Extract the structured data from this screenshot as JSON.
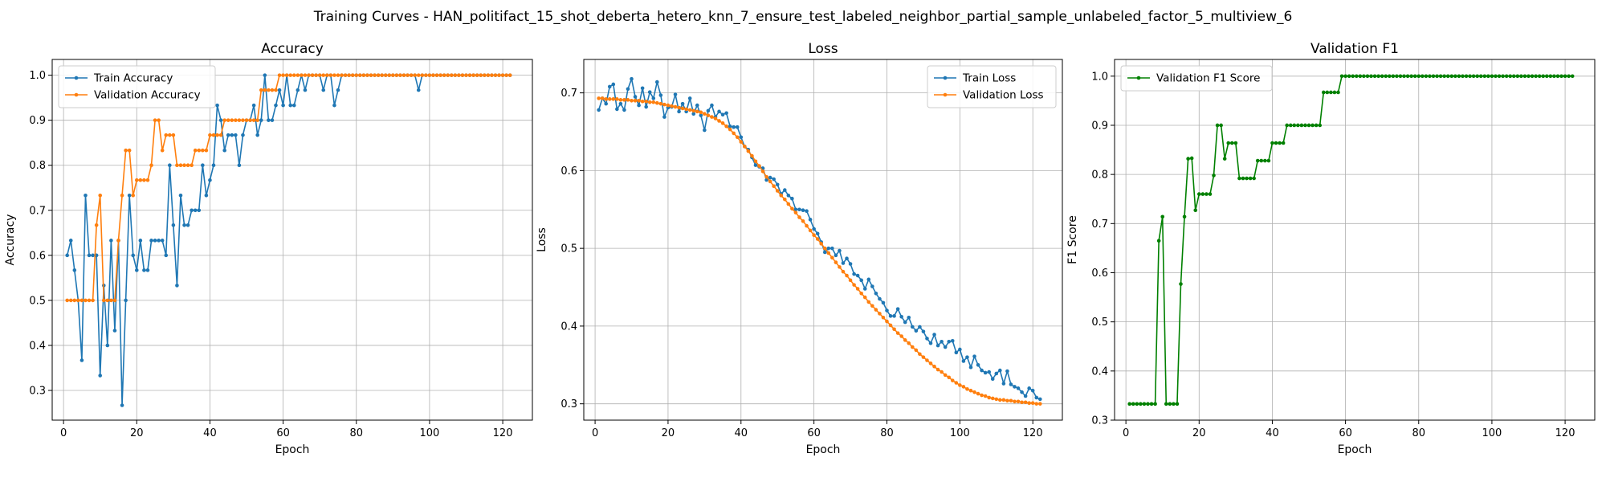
{
  "suptitle": "Training Curves - HAN_politifact_15_shot_deberta_hetero_knn_7_ensure_test_labeled_neighbor_partial_sample_unlabeled_factor_5_multiview_6",
  "chart_data": [
    {
      "type": "line",
      "title": "Accuracy",
      "xlabel": "Epoch",
      "ylabel": "Accuracy",
      "xlim": [
        -3.1,
        128.1
      ],
      "ylim": [
        0.234,
        1.035
      ],
      "xticks": [
        0,
        20,
        40,
        60,
        80,
        100,
        120
      ],
      "yticks": [
        0.3,
        0.4,
        0.5,
        0.6,
        0.7,
        0.8,
        0.9,
        1.0
      ],
      "grid": true,
      "legend": "top-left",
      "x": [
        1,
        2,
        3,
        4,
        5,
        6,
        7,
        8,
        9,
        10,
        11,
        12,
        13,
        14,
        15,
        16,
        17,
        18,
        19,
        20,
        21,
        22,
        23,
        24,
        25,
        26,
        27,
        28,
        29,
        30,
        31,
        32,
        33,
        34,
        35,
        36,
        37,
        38,
        39,
        40,
        41,
        42,
        43,
        44,
        45,
        46,
        47,
        48,
        49,
        50,
        51,
        52,
        53,
        54,
        55,
        56,
        57,
        58,
        59,
        60,
        61,
        62,
        63,
        64,
        65,
        66,
        67,
        68,
        69,
        70,
        71,
        72,
        73,
        74,
        75,
        76,
        77,
        78,
        79,
        80,
        81,
        82,
        83,
        84,
        85,
        86,
        87,
        88,
        89,
        90,
        91,
        92,
        93,
        94,
        95,
        96,
        97,
        98,
        99,
        100,
        101,
        102,
        103,
        104,
        105,
        106,
        107,
        108,
        109,
        110,
        111,
        112,
        113,
        114,
        115,
        116,
        117,
        118,
        119,
        120,
        121,
        122
      ],
      "series": [
        {
          "name": "Train Accuracy",
          "color": "#1f77b4",
          "values": [
            0.6,
            0.633,
            0.567,
            0.5,
            0.367,
            0.733,
            0.6,
            0.6,
            0.6,
            0.333,
            0.533,
            0.4,
            0.633,
            0.433,
            0.633,
            0.267,
            0.5,
            0.733,
            0.6,
            0.567,
            0.633,
            0.567,
            0.567,
            0.633,
            0.633,
            0.633,
            0.633,
            0.6,
            0.8,
            0.667,
            0.533,
            0.733,
            0.667,
            0.667,
            0.7,
            0.7,
            0.7,
            0.8,
            0.733,
            0.767,
            0.8,
            0.933,
            0.9,
            0.833,
            0.867,
            0.867,
            0.867,
            0.8,
            0.867,
            0.9,
            0.9,
            0.933,
            0.867,
            0.9,
            1.0,
            0.9,
            0.9,
            0.933,
            0.967,
            0.933,
            1.0,
            0.933,
            0.933,
            0.967,
            1.0,
            0.967,
            1.0,
            1.0,
            1.0,
            1.0,
            0.967,
            1.0,
            1.0,
            0.933,
            0.967,
            1.0,
            1.0,
            1.0,
            1.0,
            1.0,
            1.0,
            1.0,
            1.0,
            1.0,
            1.0,
            1.0,
            1.0,
            1.0,
            1.0,
            1.0,
            1.0,
            1.0,
            1.0,
            1.0,
            1.0,
            1.0,
            0.967,
            1.0,
            1.0,
            1.0,
            1.0,
            1.0,
            1.0,
            1.0,
            1.0,
            1.0,
            1.0,
            1.0,
            1.0,
            1.0,
            1.0,
            1.0,
            1.0,
            1.0,
            1.0,
            1.0,
            1.0,
            1.0,
            1.0,
            1.0,
            1.0,
            1.0
          ]
        },
        {
          "name": "Validation Accuracy",
          "color": "#ff7f0e",
          "values": [
            0.5,
            0.5,
            0.5,
            0.5,
            0.5,
            0.5,
            0.5,
            0.5,
            0.667,
            0.733,
            0.5,
            0.5,
            0.5,
            0.5,
            0.633,
            0.733,
            0.833,
            0.833,
            0.733,
            0.767,
            0.767,
            0.767,
            0.767,
            0.8,
            0.9,
            0.9,
            0.833,
            0.867,
            0.867,
            0.867,
            0.8,
            0.8,
            0.8,
            0.8,
            0.8,
            0.833,
            0.833,
            0.833,
            0.833,
            0.867,
            0.867,
            0.867,
            0.867,
            0.9,
            0.9,
            0.9,
            0.9,
            0.9,
            0.9,
            0.9,
            0.9,
            0.9,
            0.9,
            0.967,
            0.967,
            0.967,
            0.967,
            0.967,
            1.0,
            1.0,
            1.0,
            1.0,
            1.0,
            1.0,
            1.0,
            1.0,
            1.0,
            1.0,
            1.0,
            1.0,
            1.0,
            1.0,
            1.0,
            1.0,
            1.0,
            1.0,
            1.0,
            1.0,
            1.0,
            1.0,
            1.0,
            1.0,
            1.0,
            1.0,
            1.0,
            1.0,
            1.0,
            1.0,
            1.0,
            1.0,
            1.0,
            1.0,
            1.0,
            1.0,
            1.0,
            1.0,
            1.0,
            1.0,
            1.0,
            1.0,
            1.0,
            1.0,
            1.0,
            1.0,
            1.0,
            1.0,
            1.0,
            1.0,
            1.0,
            1.0,
            1.0,
            1.0,
            1.0,
            1.0,
            1.0,
            1.0,
            1.0,
            1.0,
            1.0,
            1.0,
            1.0,
            1.0
          ]
        }
      ]
    },
    {
      "type": "line",
      "title": "Loss",
      "xlabel": "Epoch",
      "ylabel": "Loss",
      "xlim": [
        -3.1,
        128.1
      ],
      "ylim": [
        0.279,
        0.743
      ],
      "xticks": [
        0,
        20,
        40,
        60,
        80,
        100,
        120
      ],
      "yticks": [
        0.3,
        0.4,
        0.5,
        0.6,
        0.7
      ],
      "grid": true,
      "legend": "top-right",
      "x": [
        1,
        2,
        3,
        4,
        5,
        6,
        7,
        8,
        9,
        10,
        11,
        12,
        13,
        14,
        15,
        16,
        17,
        18,
        19,
        20,
        21,
        22,
        23,
        24,
        25,
        26,
        27,
        28,
        29,
        30,
        31,
        32,
        33,
        34,
        35,
        36,
        37,
        38,
        39,
        40,
        41,
        42,
        43,
        44,
        45,
        46,
        47,
        48,
        49,
        50,
        51,
        52,
        53,
        54,
        55,
        56,
        57,
        58,
        59,
        60,
        61,
        62,
        63,
        64,
        65,
        66,
        67,
        68,
        69,
        70,
        71,
        72,
        73,
        74,
        75,
        76,
        77,
        78,
        79,
        80,
        81,
        82,
        83,
        84,
        85,
        86,
        87,
        88,
        89,
        90,
        91,
        92,
        93,
        94,
        95,
        96,
        97,
        98,
        99,
        100,
        101,
        102,
        103,
        104,
        105,
        106,
        107,
        108,
        109,
        110,
        111,
        112,
        113,
        114,
        115,
        116,
        117,
        118,
        119,
        120,
        121,
        122
      ],
      "series": [
        {
          "name": "Train Loss",
          "color": "#1f77b4",
          "values": [
            0.678,
            0.693,
            0.686,
            0.708,
            0.711,
            0.679,
            0.686,
            0.678,
            0.705,
            0.718,
            0.695,
            0.684,
            0.706,
            0.682,
            0.701,
            0.693,
            0.714,
            0.697,
            0.669,
            0.681,
            0.682,
            0.698,
            0.676,
            0.686,
            0.676,
            0.693,
            0.673,
            0.684,
            0.671,
            0.652,
            0.677,
            0.684,
            0.669,
            0.676,
            0.672,
            0.674,
            0.657,
            0.656,
            0.656,
            0.643,
            0.631,
            0.627,
            0.617,
            0.607,
            0.605,
            0.603,
            0.588,
            0.591,
            0.589,
            0.582,
            0.57,
            0.575,
            0.568,
            0.564,
            0.55,
            0.55,
            0.549,
            0.548,
            0.537,
            0.525,
            0.519,
            0.508,
            0.495,
            0.5,
            0.5,
            0.491,
            0.497,
            0.481,
            0.487,
            0.48,
            0.467,
            0.465,
            0.459,
            0.448,
            0.46,
            0.451,
            0.442,
            0.435,
            0.43,
            0.42,
            0.413,
            0.413,
            0.422,
            0.412,
            0.405,
            0.411,
            0.399,
            0.394,
            0.399,
            0.393,
            0.384,
            0.378,
            0.389,
            0.375,
            0.38,
            0.373,
            0.38,
            0.381,
            0.366,
            0.37,
            0.355,
            0.36,
            0.347,
            0.361,
            0.35,
            0.343,
            0.34,
            0.341,
            0.332,
            0.339,
            0.343,
            0.326,
            0.342,
            0.325,
            0.322,
            0.32,
            0.315,
            0.31,
            0.32,
            0.317,
            0.308,
            0.306
          ]
        },
        {
          "name": "Validation Loss",
          "color": "#ff7f0e",
          "values": [
            0.693,
            0.693,
            0.692,
            0.692,
            0.692,
            0.692,
            0.691,
            0.691,
            0.691,
            0.69,
            0.69,
            0.69,
            0.689,
            0.689,
            0.688,
            0.688,
            0.687,
            0.686,
            0.685,
            0.684,
            0.683,
            0.682,
            0.681,
            0.68,
            0.679,
            0.678,
            0.677,
            0.676,
            0.675,
            0.673,
            0.671,
            0.669,
            0.667,
            0.664,
            0.661,
            0.657,
            0.653,
            0.648,
            0.643,
            0.637,
            0.631,
            0.625,
            0.619,
            0.612,
            0.606,
            0.599,
            0.592,
            0.586,
            0.58,
            0.574,
            0.568,
            0.563,
            0.557,
            0.551,
            0.546,
            0.54,
            0.535,
            0.529,
            0.523,
            0.517,
            0.512,
            0.506,
            0.5,
            0.494,
            0.488,
            0.482,
            0.476,
            0.47,
            0.465,
            0.459,
            0.453,
            0.448,
            0.442,
            0.437,
            0.431,
            0.426,
            0.421,
            0.416,
            0.411,
            0.406,
            0.401,
            0.396,
            0.391,
            0.387,
            0.382,
            0.378,
            0.373,
            0.369,
            0.364,
            0.36,
            0.356,
            0.352,
            0.348,
            0.344,
            0.341,
            0.337,
            0.334,
            0.33,
            0.327,
            0.324,
            0.322,
            0.319,
            0.317,
            0.315,
            0.313,
            0.311,
            0.31,
            0.308,
            0.307,
            0.306,
            0.305,
            0.305,
            0.304,
            0.304,
            0.303,
            0.303,
            0.302,
            0.302,
            0.301,
            0.301,
            0.3,
            0.3
          ]
        }
      ]
    },
    {
      "type": "line",
      "title": "Validation F1",
      "xlabel": "Epoch",
      "ylabel": "F1 Score",
      "xlim": [
        -3.1,
        128.1
      ],
      "ylim": [
        0.3,
        1.034
      ],
      "xticks": [
        0,
        20,
        40,
        60,
        80,
        100,
        120
      ],
      "yticks": [
        0.3,
        0.4,
        0.5,
        0.6,
        0.7,
        0.8,
        0.9,
        1.0
      ],
      "grid": true,
      "legend": "top-left",
      "x": [
        1,
        2,
        3,
        4,
        5,
        6,
        7,
        8,
        9,
        10,
        11,
        12,
        13,
        14,
        15,
        16,
        17,
        18,
        19,
        20,
        21,
        22,
        23,
        24,
        25,
        26,
        27,
        28,
        29,
        30,
        31,
        32,
        33,
        34,
        35,
        36,
        37,
        38,
        39,
        40,
        41,
        42,
        43,
        44,
        45,
        46,
        47,
        48,
        49,
        50,
        51,
        52,
        53,
        54,
        55,
        56,
        57,
        58,
        59,
        60,
        61,
        62,
        63,
        64,
        65,
        66,
        67,
        68,
        69,
        70,
        71,
        72,
        73,
        74,
        75,
        76,
        77,
        78,
        79,
        80,
        81,
        82,
        83,
        84,
        85,
        86,
        87,
        88,
        89,
        90,
        91,
        92,
        93,
        94,
        95,
        96,
        97,
        98,
        99,
        100,
        101,
        102,
        103,
        104,
        105,
        106,
        107,
        108,
        109,
        110,
        111,
        112,
        113,
        114,
        115,
        116,
        117,
        118,
        119,
        120,
        121,
        122
      ],
      "series": [
        {
          "name": "Validation F1 Score",
          "color": "#008000",
          "values": [
            0.333,
            0.333,
            0.333,
            0.333,
            0.333,
            0.333,
            0.333,
            0.333,
            0.665,
            0.714,
            0.333,
            0.333,
            0.333,
            0.333,
            0.577,
            0.714,
            0.832,
            0.833,
            0.727,
            0.76,
            0.76,
            0.76,
            0.76,
            0.798,
            0.9,
            0.9,
            0.832,
            0.864,
            0.864,
            0.864,
            0.792,
            0.792,
            0.792,
            0.792,
            0.792,
            0.828,
            0.828,
            0.828,
            0.828,
            0.864,
            0.864,
            0.864,
            0.864,
            0.9,
            0.9,
            0.9,
            0.9,
            0.9,
            0.9,
            0.9,
            0.9,
            0.9,
            0.9,
            0.967,
            0.967,
            0.967,
            0.967,
            0.967,
            1.0,
            1.0,
            1.0,
            1.0,
            1.0,
            1.0,
            1.0,
            1.0,
            1.0,
            1.0,
            1.0,
            1.0,
            1.0,
            1.0,
            1.0,
            1.0,
            1.0,
            1.0,
            1.0,
            1.0,
            1.0,
            1.0,
            1.0,
            1.0,
            1.0,
            1.0,
            1.0,
            1.0,
            1.0,
            1.0,
            1.0,
            1.0,
            1.0,
            1.0,
            1.0,
            1.0,
            1.0,
            1.0,
            1.0,
            1.0,
            1.0,
            1.0,
            1.0,
            1.0,
            1.0,
            1.0,
            1.0,
            1.0,
            1.0,
            1.0,
            1.0,
            1.0,
            1.0,
            1.0,
            1.0,
            1.0,
            1.0,
            1.0,
            1.0,
            1.0,
            1.0,
            1.0,
            1.0,
            1.0
          ]
        }
      ]
    }
  ]
}
